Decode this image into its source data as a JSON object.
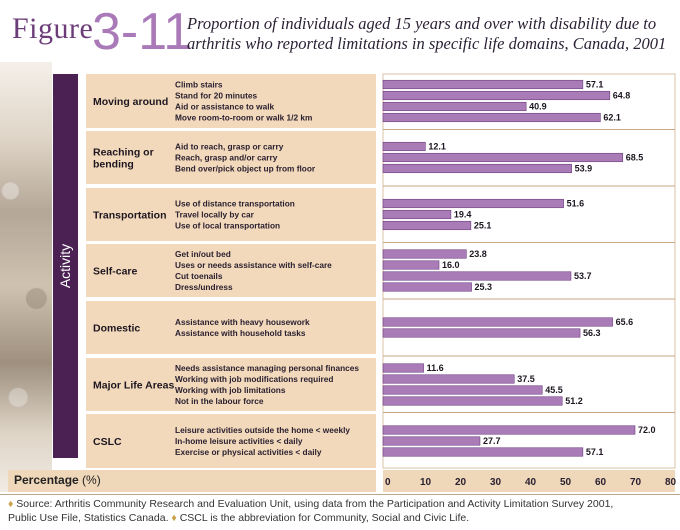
{
  "figure": {
    "label": "Figure",
    "number": "3-11"
  },
  "title": "Proportion of individuals aged 15 years and over with disability due to arthritis who reported limitations in specific life domains, Canada, 2001",
  "activity_label": "Activity",
  "x_axis_label": "Percentage",
  "x_axis_unit": "(%)",
  "footnote_line1": "Source: Arthritis Community Research and Evaluation Unit, using data from the Participation and Activity Limitation Survey 2001,",
  "footnote_line2a": "Public Use File, Statistics Canada.",
  "footnote_line2b": "CSCL is the abbreviation for Community, Social and Civic Life.",
  "colors": {
    "bar": "#a97cb8",
    "bar_stroke": "#6e3f80",
    "panel": "#efd7b9",
    "group_panel": "#f2d9bb",
    "dark": "#4a2152",
    "accent": "#6d3d7a"
  },
  "chart_data": {
    "type": "bar",
    "orientation": "horizontal",
    "title": "Proportion of individuals aged 15 years and over with disability due to arthritis who reported limitations in specific life domains, Canada, 2001",
    "xlabel": "Percentage (%)",
    "ylabel": "Activity",
    "xlim": [
      0,
      80
    ],
    "xticks": [
      "0",
      "10",
      "20",
      "30",
      "40",
      "50",
      "60",
      "70",
      "80"
    ],
    "groups": [
      {
        "name": "Moving around",
        "items": [
          {
            "label": "Climb stairs",
            "value": 57.1,
            "value_label": "57.1"
          },
          {
            "label": "Stand for 20 minutes",
            "value": 64.8,
            "value_label": "64.8"
          },
          {
            "label": "Aid or assistance to walk",
            "value": 40.9,
            "value_label": "40.9"
          },
          {
            "label": "Move room-to-room or walk 1/2 km",
            "value": 62.1,
            "value_label": "62.1"
          }
        ]
      },
      {
        "name": "Reaching or bending",
        "items": [
          {
            "label": "Aid to reach, grasp or carry",
            "value": 12.1,
            "value_label": "12.1"
          },
          {
            "label": "Reach, grasp and/or carry",
            "value": 68.5,
            "value_label": "68.5"
          },
          {
            "label": "Bend over/pick object up from floor",
            "value": 53.9,
            "value_label": "53.9"
          }
        ]
      },
      {
        "name": "Transportation",
        "items": [
          {
            "label": "Use of distance transportation",
            "value": 51.6,
            "value_label": "51.6"
          },
          {
            "label": "Travel locally by car",
            "value": 19.4,
            "value_label": "19.4"
          },
          {
            "label": "Use of local transportation",
            "value": 25.1,
            "value_label": "25.1"
          }
        ]
      },
      {
        "name": "Self-care",
        "items": [
          {
            "label": "Get in/out bed",
            "value": 23.8,
            "value_label": "23.8"
          },
          {
            "label": "Uses or needs assistance with self-care",
            "value": 16.0,
            "value_label": "16.0"
          },
          {
            "label": "Cut toenails",
            "value": 53.7,
            "value_label": "53.7"
          },
          {
            "label": "Dress/undress",
            "value": 25.3,
            "value_label": "25.3"
          }
        ]
      },
      {
        "name": "Domestic",
        "items": [
          {
            "label": "Assistance with heavy housework",
            "value": 65.6,
            "value_label": "65.6"
          },
          {
            "label": "Assistance with household tasks",
            "value": 56.3,
            "value_label": "56.3"
          }
        ]
      },
      {
        "name": "Major Life Areas",
        "items": [
          {
            "label": "Needs assistance managing personal finances",
            "value": 11.6,
            "value_label": "11.6"
          },
          {
            "label": "Working with job modifications required",
            "value": 37.5,
            "value_label": "37.5"
          },
          {
            "label": "Working with job limitations",
            "value": 45.5,
            "value_label": "45.5"
          },
          {
            "label": "Not in the labour force",
            "value": 51.2,
            "value_label": "51.2"
          }
        ]
      },
      {
        "name": "CSLC",
        "items": [
          {
            "label": "Leisure activities outside the home < weekly",
            "value": 72.0,
            "value_label": "72.0"
          },
          {
            "label": "In-home leisure activities < daily",
            "value": 27.7,
            "value_label": "27.7"
          },
          {
            "label": "Exercise or physical activities < daily",
            "value": 57.1,
            "value_label": "57.1"
          }
        ]
      }
    ]
  }
}
